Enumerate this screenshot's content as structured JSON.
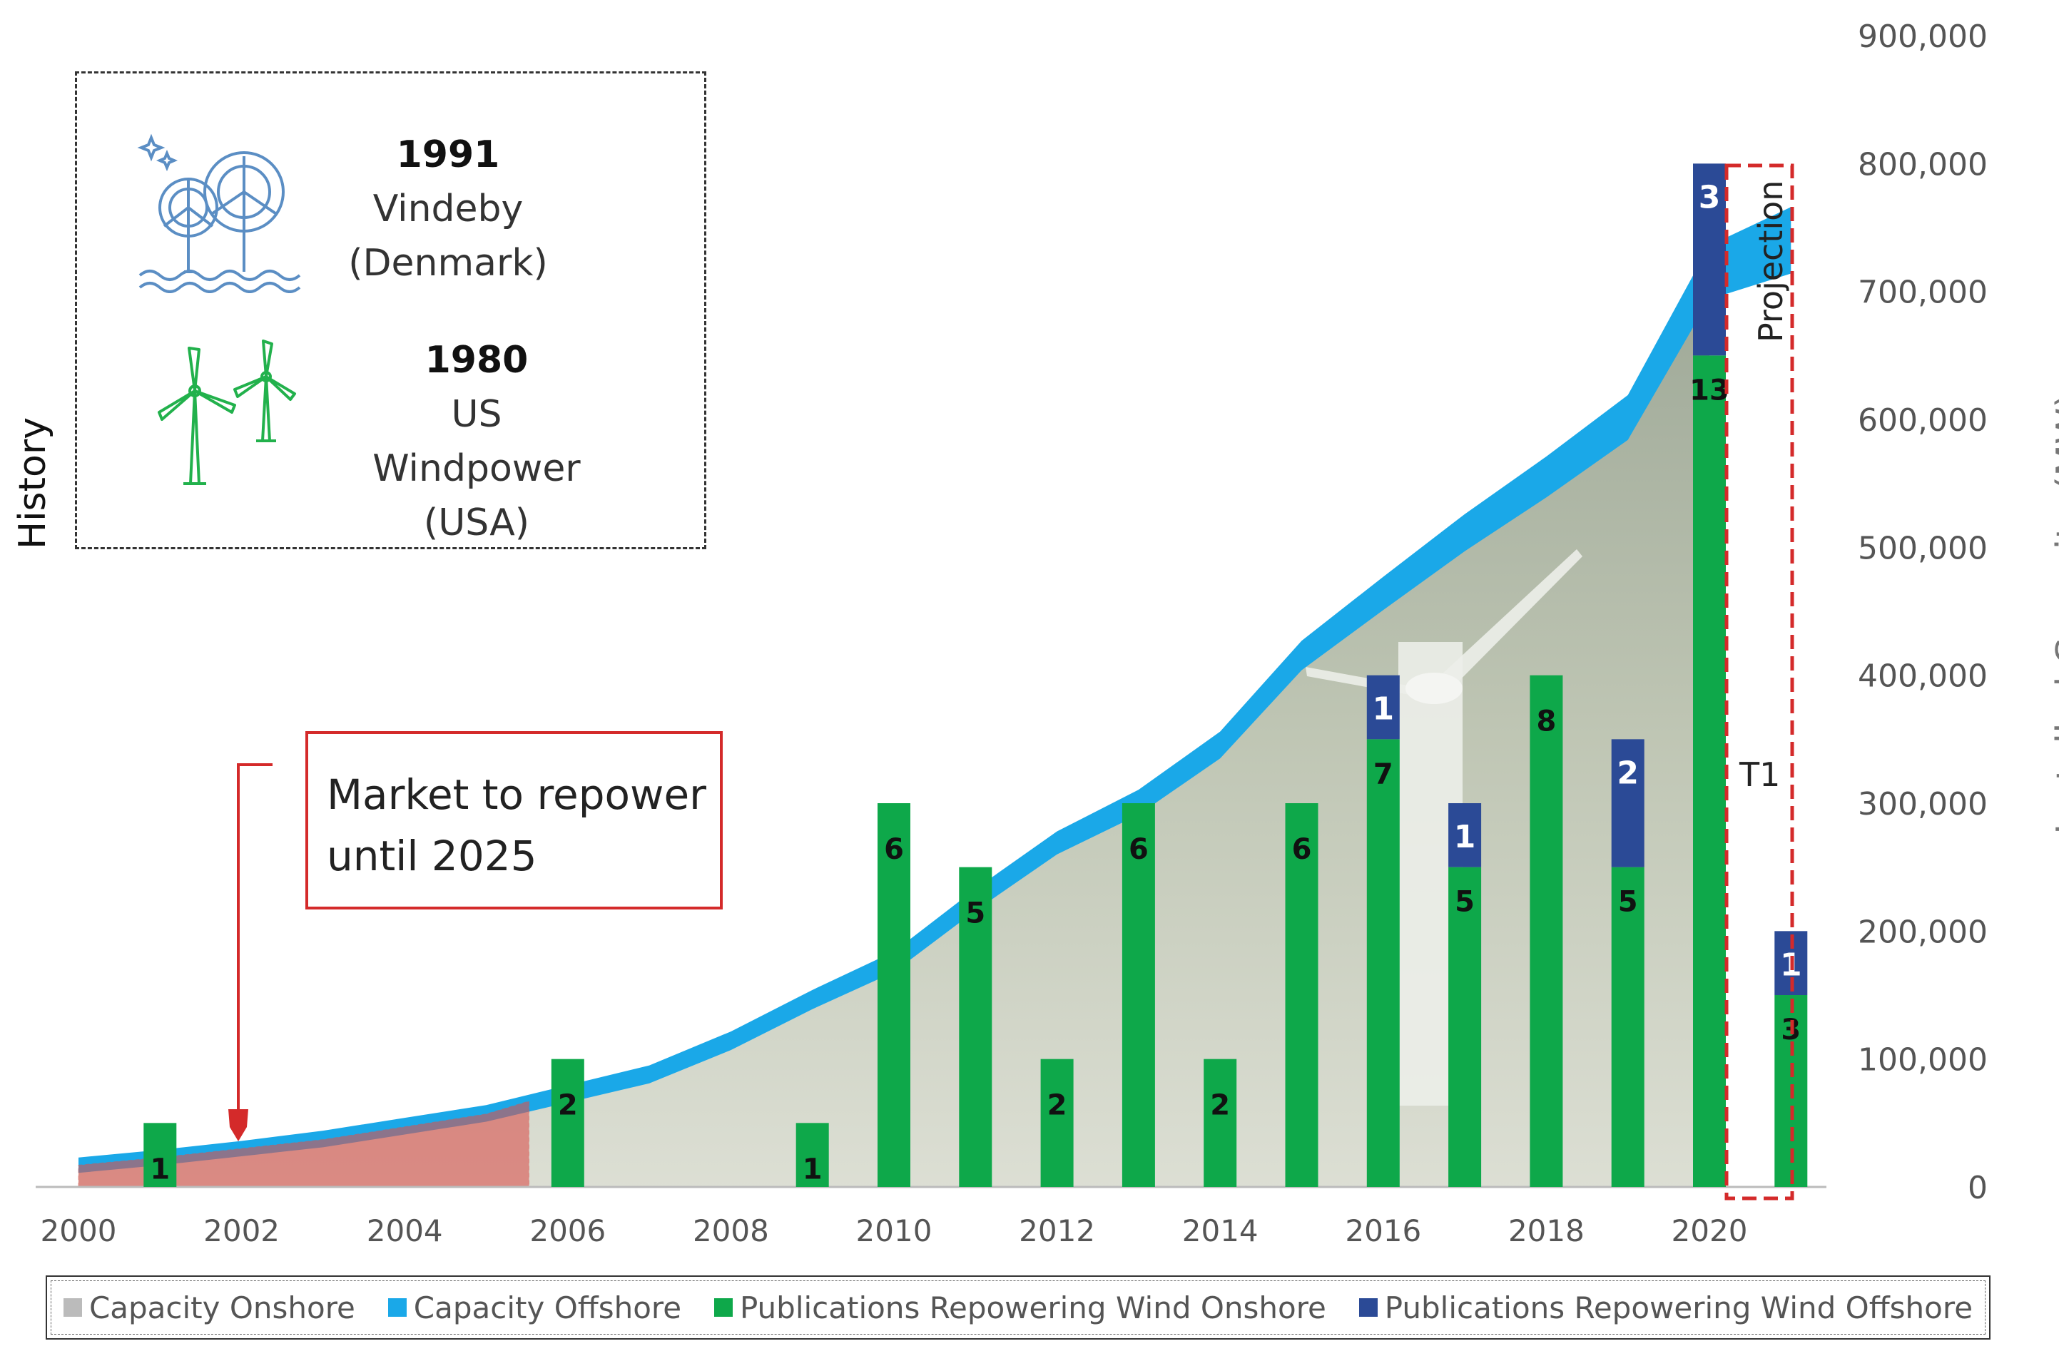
{
  "chart_data": {
    "type": "bar+area",
    "x": [
      2000,
      2001,
      2002,
      2003,
      2004,
      2005,
      2006,
      2007,
      2008,
      2009,
      2010,
      2011,
      2012,
      2013,
      2014,
      2015,
      2016,
      2017,
      2018,
      2019,
      2020,
      2021
    ],
    "x_tick_labels": [
      "2000",
      "2002",
      "2004",
      "2006",
      "2008",
      "2010",
      "2012",
      "2014",
      "2016",
      "2018",
      "2020"
    ],
    "series": [
      {
        "name": "Capacity Onshore",
        "type": "area",
        "color": "#bbbbbb",
        "values": [
          17000,
          23000,
          30000,
          37000,
          47000,
          57000,
          72000,
          87000,
          113000,
          145000,
          174000,
          222000,
          266000,
          297000,
          341000,
          410000,
          457000,
          503000,
          545000,
          590000,
          700000,
          720000
        ]
      },
      {
        "name": "Capacity Offshore",
        "type": "area",
        "color": "#1aa8e8",
        "values": [
          0,
          0,
          0,
          1000,
          1000,
          1000,
          1500,
          2000,
          2500,
          3000,
          4000,
          5000,
          6000,
          7500,
          9000,
          11000,
          14000,
          17000,
          20000,
          23000,
          30000,
          40000
        ]
      },
      {
        "name": "Publications Repowering Wind Onshore",
        "type": "bar",
        "color": "#0ea84a",
        "values": [
          0,
          1,
          0,
          0,
          0,
          0,
          2,
          0,
          0,
          1,
          6,
          5,
          2,
          6,
          2,
          6,
          7,
          5,
          8,
          5,
          13,
          3
        ]
      },
      {
        "name": "Publications Repowering Wind Offshore",
        "type": "bar",
        "color": "#2b4a96",
        "values": [
          0,
          0,
          0,
          0,
          0,
          0,
          0,
          0,
          0,
          0,
          0,
          0,
          0,
          0,
          0,
          0,
          1,
          1,
          0,
          2,
          3,
          1
        ]
      }
    ],
    "bar_scale_mw_per_publication": 50000,
    "y_ticks": [
      "900,000",
      "800,000",
      "700,000",
      "600,000",
      "500,000",
      "400,000",
      "300,000",
      "200,000",
      "100,000",
      "0"
    ],
    "ylim": [
      0,
      900000
    ],
    "ylabel": "Installed Capacity (MW)",
    "annotations": {
      "projection_label": "Projection",
      "t1_label": "T1",
      "market_text_line1": "Market to repower",
      "market_text_line2": "until 2025"
    }
  },
  "history": {
    "label": "History",
    "items": [
      {
        "year": "1991",
        "name": "Vindeby",
        "country": "(Denmark)",
        "icon": "offshore-wind-turbine-icon"
      },
      {
        "year": "1980",
        "name": "US Windpower",
        "country": "(USA)",
        "icon": "onshore-wind-turbine-icon"
      }
    ]
  },
  "legend": [
    {
      "label": "Capacity Onshore",
      "color": "#bbbbbb"
    },
    {
      "label": "Capacity Offshore",
      "color": "#1aa8e8"
    },
    {
      "label": "Publications Repowering Wind Onshore",
      "color": "#0ea84a"
    },
    {
      "label": "Publications Repowering Wind Offshore",
      "color": "#2b4a96"
    }
  ]
}
